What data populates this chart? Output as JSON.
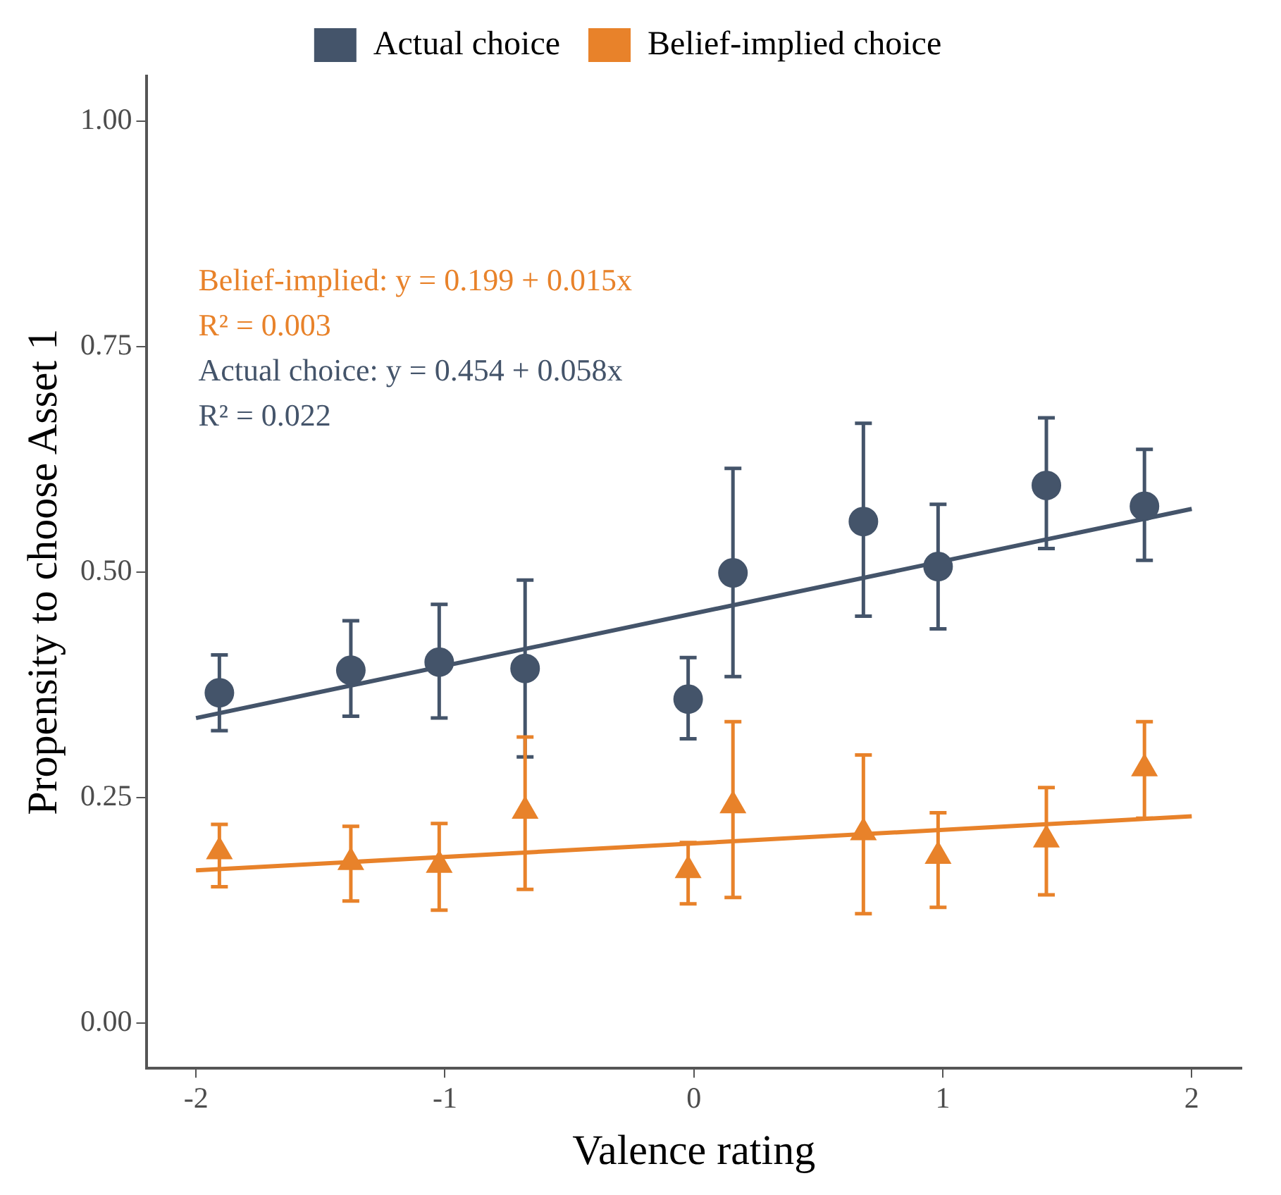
{
  "chart_data": {
    "type": "scatter",
    "xlabel": "Valence rating",
    "ylabel": "Propensity to choose Asset 1",
    "xlim": [
      -2.2,
      2.2
    ],
    "ylim": [
      -0.05,
      1.05
    ],
    "xticks": [
      -2,
      -1,
      0,
      1,
      2
    ],
    "yticks": [
      {
        "value": 0,
        "label": "0.00"
      },
      {
        "value": 0.25,
        "label": "0.25"
      },
      {
        "value": 0.5,
        "label": "0.50"
      },
      {
        "value": 0.75,
        "label": "0.75"
      },
      {
        "value": 1,
        "label": "1.00"
      }
    ],
    "grid": false,
    "legend": "top",
    "series": [
      {
        "name": "Actual choice",
        "marker": "circle",
        "color": "#44546a",
        "x": [
          -1.906,
          -1.378,
          -1.023,
          -0.678,
          -0.023,
          0.157,
          0.681,
          0.981,
          1.416,
          1.81
        ],
        "values": [
          0.366,
          0.391,
          0.4,
          0.393,
          0.359,
          0.499,
          0.556,
          0.506,
          0.596,
          0.573
        ],
        "errors": [
          [
            0.324,
            0.408
          ],
          [
            0.34,
            0.446
          ],
          [
            0.338,
            0.464
          ],
          [
            0.295,
            0.491
          ],
          [
            0.315,
            0.405
          ],
          [
            0.384,
            0.615
          ],
          [
            0.451,
            0.665
          ],
          [
            0.437,
            0.575
          ],
          [
            0.526,
            0.671
          ],
          [
            0.513,
            0.636
          ]
        ]
      },
      {
        "name": "Belief-implied choice",
        "marker": "triangle",
        "color": "#e8822a",
        "x": [
          -1.906,
          -1.378,
          -1.023,
          -0.678,
          -0.023,
          0.157,
          0.681,
          0.981,
          1.416,
          1.81
        ],
        "values": [
          0.19,
          0.178,
          0.175,
          0.235,
          0.169,
          0.241,
          0.211,
          0.185,
          0.203,
          0.282
        ],
        "errors": [
          [
            0.151,
            0.22
          ],
          [
            0.135,
            0.218
          ],
          [
            0.125,
            0.221
          ],
          [
            0.148,
            0.317
          ],
          [
            0.132,
            0.2
          ],
          [
            0.139,
            0.334
          ],
          [
            0.121,
            0.297
          ],
          [
            0.128,
            0.233
          ],
          [
            0.142,
            0.261
          ],
          [
            0.227,
            0.334
          ]
        ]
      },
      {
        "type": "line",
        "color": "#44546a",
        "x": [
          -2,
          2
        ],
        "values": [
          0.338,
          0.57
        ]
      },
      {
        "type": "line",
        "color": "#e8822a",
        "x": [
          -2,
          2
        ],
        "values": [
          0.169,
          0.229
        ]
      }
    ],
    "annotations": [
      "Belief-implied: y = 0.199 + 0.015x",
      "R² = 0.003",
      "Actual choice: y = 0.454 + 0.058x",
      "R² = 0.022"
    ]
  }
}
